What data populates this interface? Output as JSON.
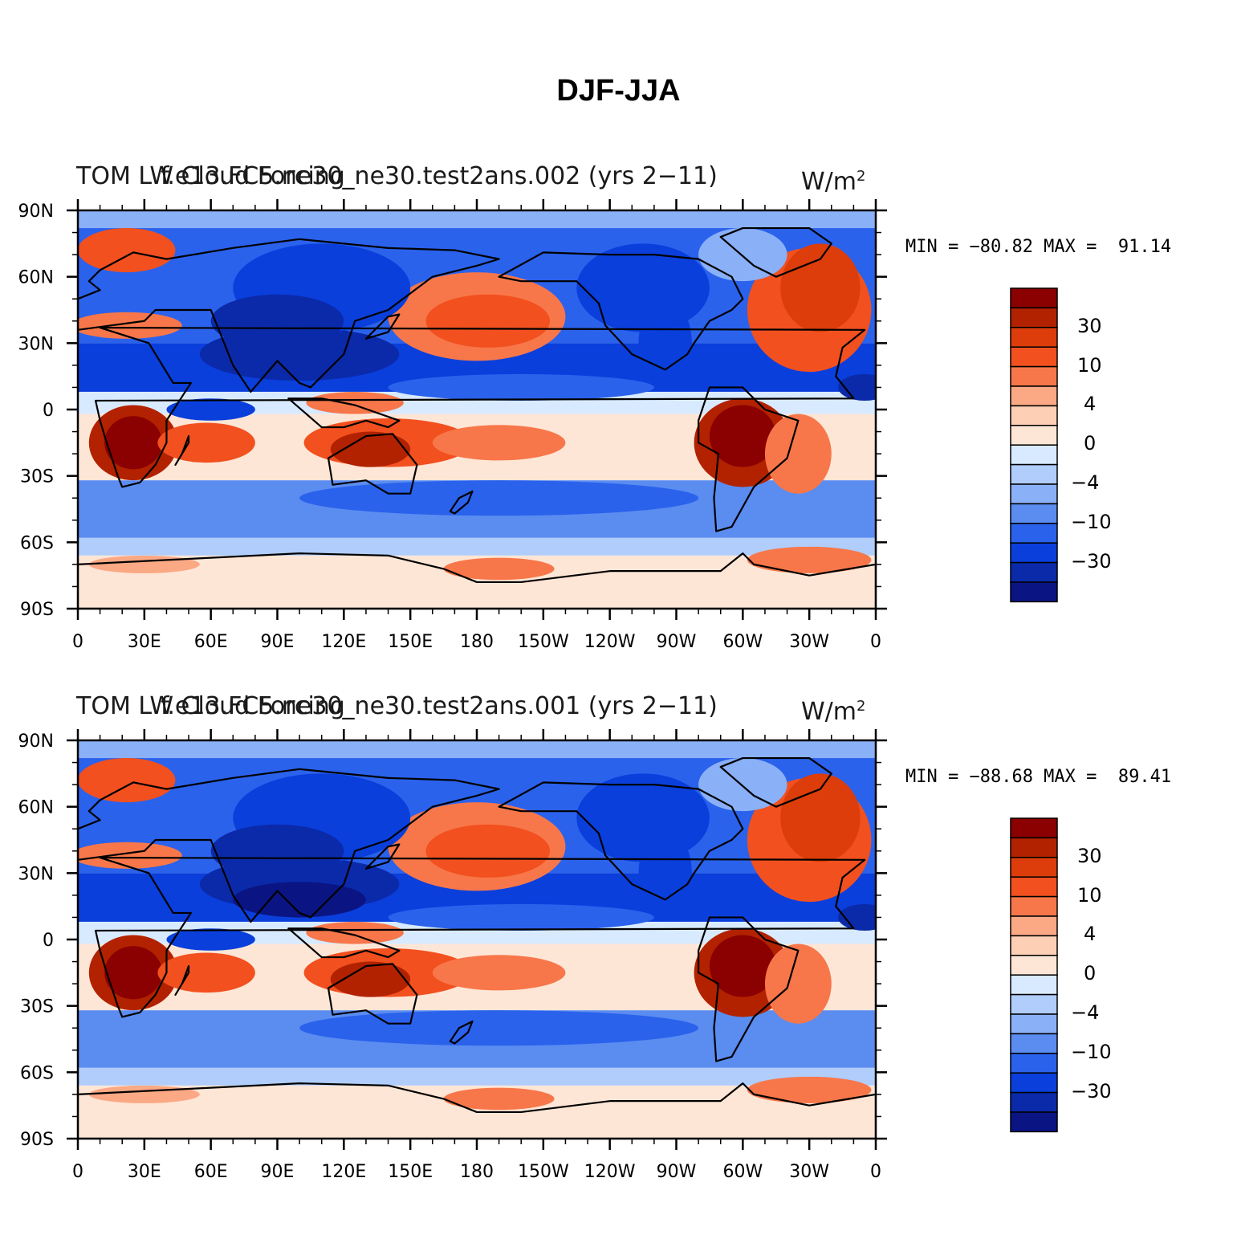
{
  "figure": {
    "title": "DJF-JJA"
  },
  "colorbar": {
    "colors": [
      "#8b0000",
      "#b22200",
      "#dc3d0a",
      "#f2501f",
      "#f7774a",
      "#fba884",
      "#fdd0b6",
      "#fee6d6",
      "#d8eaff",
      "#b0cdfb",
      "#8ab0f7",
      "#5b8cf0",
      "#2a62ec",
      "#0a3fdc",
      "#0a2aaa",
      "#0a1583"
    ],
    "labels": [
      "30",
      "10",
      "4",
      "0",
      "−4",
      "−10",
      "−30"
    ]
  },
  "axes": {
    "lat_ticks": [
      "90N",
      "60N",
      "30N",
      "0",
      "30S",
      "60S",
      "90S"
    ],
    "lon_ticks": [
      "0",
      "30E",
      "60E",
      "90E",
      "120E",
      "150E",
      "180",
      "150W",
      "120W",
      "90W",
      "60W",
      "30W",
      "0"
    ]
  },
  "panels": [
    {
      "left_title": "TOM LW Cloud Forcing",
      "center_title": "f.e13.FC5.ne30_ne30.test2ans.002 (yrs 2−11)",
      "units": "W/m",
      "units_sup": "2",
      "min_max": "MIN = −80.82 MAX =  91.14"
    },
    {
      "left_title": "TOM LW Cloud Forcing",
      "center_title": "f.e13.FC5.ne30_ne30.test2ans.001 (yrs 2−11)",
      "units": "W/m",
      "units_sup": "2",
      "min_max": "MIN = −88.68 MAX =  89.41"
    }
  ]
}
